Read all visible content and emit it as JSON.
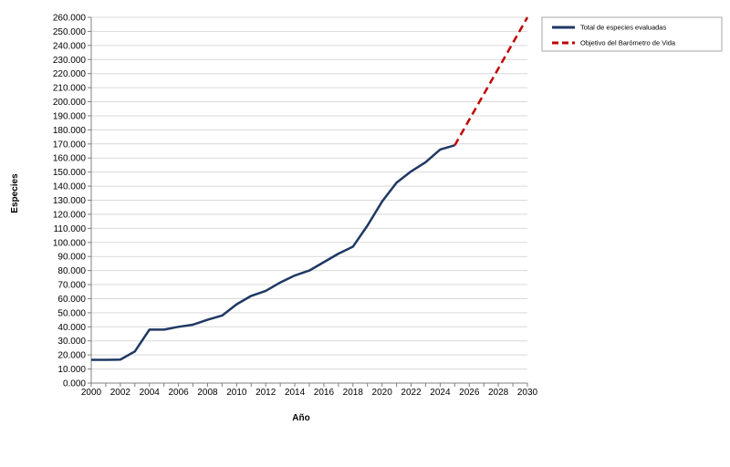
{
  "chart_data": {
    "type": "line",
    "title": "",
    "xlabel": "Año",
    "ylabel": "Especies",
    "xlim": [
      2000,
      2030
    ],
    "ylim": [
      0,
      260000
    ],
    "x_ticks": [
      2000,
      2002,
      2004,
      2006,
      2008,
      2010,
      2012,
      2014,
      2016,
      2018,
      2020,
      2022,
      2024,
      2026,
      2028,
      2030
    ],
    "y_ticks": [
      0,
      10000,
      20000,
      30000,
      40000,
      50000,
      60000,
      70000,
      80000,
      90000,
      100000,
      110000,
      120000,
      130000,
      140000,
      150000,
      160000,
      170000,
      180000,
      190000,
      200000,
      210000,
      220000,
      230000,
      240000,
      250000,
      260000
    ],
    "y_tick_labels": [
      "0.000",
      "10.000",
      "20.000",
      "30.000",
      "40.000",
      "50.000",
      "60.000",
      "70.000",
      "80.000",
      "90.000",
      "100.000",
      "110.000",
      "120.000",
      "130.000",
      "140.000",
      "150.000",
      "160.000",
      "170.000",
      "180.000",
      "190.000",
      "200.000",
      "210.000",
      "220.000",
      "230.000",
      "240.000",
      "250.000",
      "260.000"
    ],
    "grid": "horizontal",
    "legend_position": "top-right",
    "series": [
      {
        "name": "Total de especies evaluadas",
        "color": "#1f3864",
        "style": "solid",
        "x": [
          2000,
          2001,
          2002,
          2003,
          2004,
          2005,
          2006,
          2007,
          2008,
          2009,
          2010,
          2011,
          2012,
          2013,
          2014,
          2015,
          2016,
          2017,
          2018,
          2019,
          2020,
          2021,
          2022,
          2023,
          2024,
          2025
        ],
        "values": [
          16500,
          16500,
          16700,
          22500,
          38000,
          38000,
          40000,
          41500,
          45000,
          48000,
          56000,
          62000,
          65500,
          71500,
          76500,
          80000,
          86000,
          92000,
          97000,
          112000,
          129000,
          142500,
          150500,
          157000,
          166000,
          169000
        ]
      },
      {
        "name": "Objetivo del Barómetro de Vida",
        "color": "#c00000",
        "style": "dashed",
        "x": [
          2025,
          2030
        ],
        "values": [
          169000,
          260000
        ]
      }
    ]
  }
}
